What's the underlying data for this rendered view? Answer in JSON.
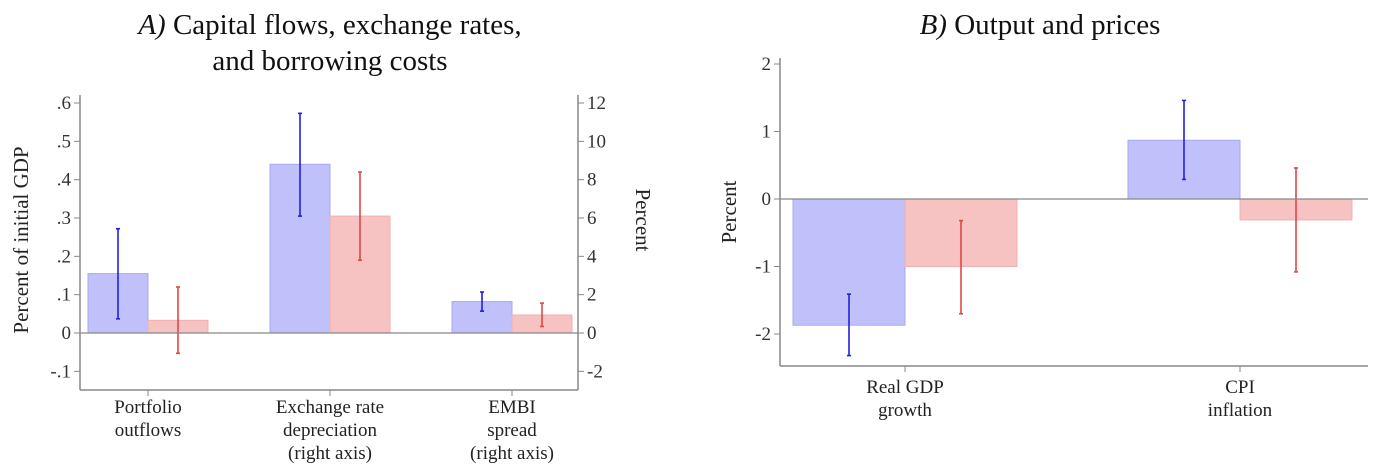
{
  "chart_data": [
    {
      "type": "bar",
      "title_prefix": "A)",
      "title_lines": [
        "Capital flows, exchange rates,",
        "and borrowing costs"
      ],
      "ylabel": "Percent of initial GDP",
      "ylabel_right": "Percent",
      "ylim": [
        -0.1,
        0.6
      ],
      "ylim_right": [
        -2,
        12
      ],
      "yticks": [
        ".6",
        ".5",
        ".4",
        ".3",
        ".2",
        ".1",
        "0",
        "-.1"
      ],
      "yticks_right": [
        "12",
        "10",
        "8",
        "6",
        "4",
        "2",
        "0",
        "-2"
      ],
      "categories": [
        {
          "lines": [
            "Portfolio",
            "outflows"
          ],
          "axis": "left"
        },
        {
          "lines": [
            "Exchange rate",
            "depreciation",
            "(right axis)"
          ],
          "axis": "right"
        },
        {
          "lines": [
            "EMBI",
            "spread",
            "(right axis)"
          ],
          "axis": "right"
        }
      ],
      "series": [
        {
          "name": "blue",
          "color": "#2020e0",
          "fill": "#c0c0fa",
          "values": [
            0.155,
            8.8,
            1.64
          ],
          "ci_low": [
            0.037,
            6.1,
            1.14
          ],
          "ci_high": [
            0.272,
            11.46,
            2.14
          ]
        },
        {
          "name": "red",
          "color": "#e04848",
          "fill": "#f6c2c2",
          "values": [
            0.033,
            6.1,
            0.94
          ],
          "ci_low": [
            -0.053,
            3.8,
            0.34
          ],
          "ci_high": [
            0.12,
            8.4,
            1.56
          ]
        }
      ]
    },
    {
      "type": "bar",
      "title_prefix": "B)",
      "title_lines": [
        "Output and prices"
      ],
      "ylabel": "Percent",
      "ylim": [
        -2.45,
        2.1
      ],
      "yticks": [
        "2",
        "1",
        "0",
        "-1",
        "-2"
      ],
      "categories": [
        {
          "lines": [
            "Real GDP",
            "growth"
          ]
        },
        {
          "lines": [
            "CPI",
            "inflation"
          ]
        }
      ],
      "series": [
        {
          "name": "blue",
          "color": "#2020e0",
          "fill": "#c0c0fa",
          "values": [
            -1.87,
            0.87
          ],
          "ci_low": [
            -2.32,
            0.29
          ],
          "ci_high": [
            -1.41,
            1.46
          ]
        },
        {
          "name": "red",
          "color": "#e04848",
          "fill": "#f6c2c2",
          "values": [
            -1.0,
            -0.31
          ],
          "ci_low": [
            -1.7,
            -1.08
          ],
          "ci_high": [
            -0.32,
            0.46
          ]
        }
      ]
    }
  ]
}
